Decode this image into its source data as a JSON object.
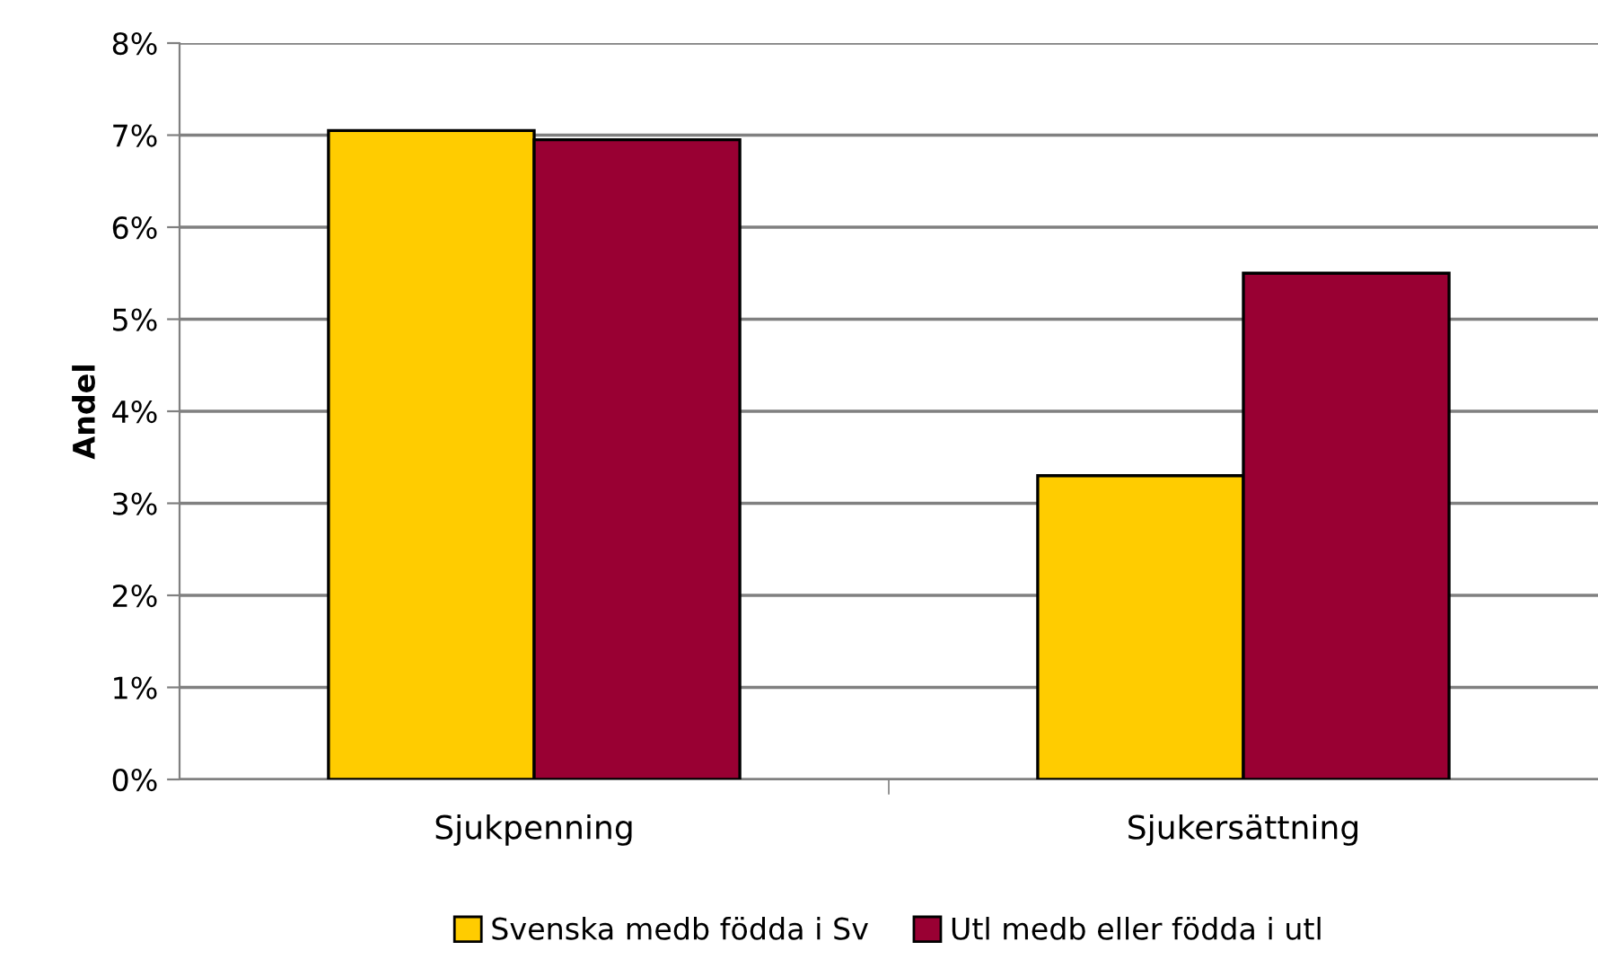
{
  "chart_data": {
    "type": "bar",
    "ylabel": "Andel",
    "categories": [
      "Sjukpenning",
      "Sjukersättning"
    ],
    "series": [
      {
        "name": "Svenska medb födda i Sv",
        "color": "#ffcc00",
        "values": [
          7.05,
          3.3
        ]
      },
      {
        "name": "Utl medb eller födda i utl",
        "color": "#990033",
        "values": [
          6.95,
          5.5
        ]
      }
    ],
    "ylim": [
      0,
      8
    ],
    "yticks": [
      {
        "value": 0,
        "label": "0%"
      },
      {
        "value": 1,
        "label": "1%"
      },
      {
        "value": 2,
        "label": "2%"
      },
      {
        "value": 3,
        "label": "3%"
      },
      {
        "value": 4,
        "label": "4%"
      },
      {
        "value": 5,
        "label": "5%"
      },
      {
        "value": 6,
        "label": "6%"
      },
      {
        "value": 7,
        "label": "7%"
      },
      {
        "value": 8,
        "label": "8%"
      }
    ],
    "grid": "y",
    "legend": "bottom"
  }
}
